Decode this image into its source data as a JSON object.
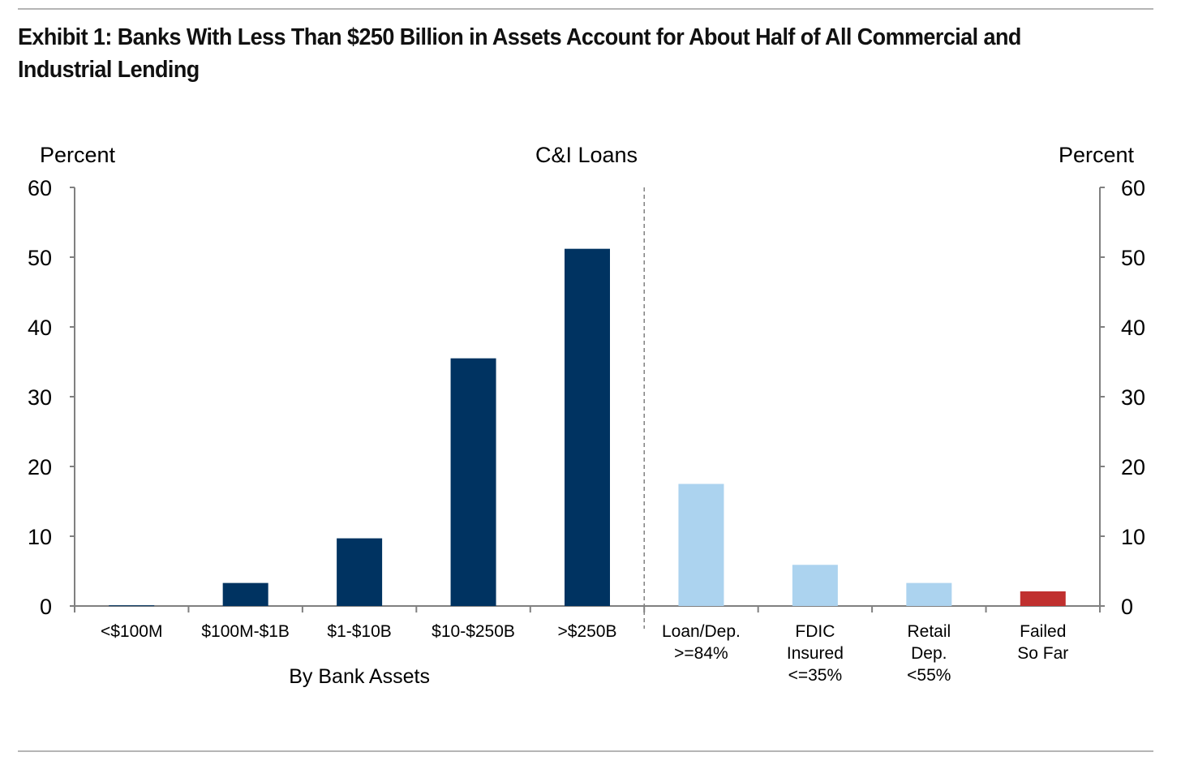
{
  "exhibit_title": "Exhibit 1: Banks With Less Than $250 Billion in Assets Account for About Half of All Commercial and Industrial Lending",
  "chart_data": {
    "type": "bar",
    "title": "C&I Loans",
    "ylabel_left": "Percent",
    "ylabel_right": "Percent",
    "ylim": [
      0,
      60
    ],
    "yticks": [
      0,
      10,
      20,
      30,
      40,
      50,
      60
    ],
    "grid": false,
    "group_labels": [
      {
        "text": "By Bank Assets",
        "group": "assets"
      }
    ],
    "categories": [
      [
        "<$100M"
      ],
      [
        "$100M-$1B"
      ],
      [
        "$1-$10B"
      ],
      [
        "$10-$250B"
      ],
      [
        ">$250B"
      ],
      [
        "Loan/Dep.",
        ">=84%"
      ],
      [
        "FDIC",
        "Insured",
        "<=35%"
      ],
      [
        "Retail",
        "Dep.",
        "<55%"
      ],
      [
        "Failed",
        "So Far"
      ]
    ],
    "values": [
      0.1,
      3.3,
      9.7,
      35.5,
      51.2,
      17.5,
      5.9,
      3.3,
      2.1
    ],
    "colors": [
      "#003361",
      "#003361",
      "#003361",
      "#003361",
      "#003361",
      "#acd3ef",
      "#acd3ef",
      "#acd3ef",
      "#c0302f"
    ],
    "divider_after_index": 4,
    "axis_color": "#808080"
  }
}
